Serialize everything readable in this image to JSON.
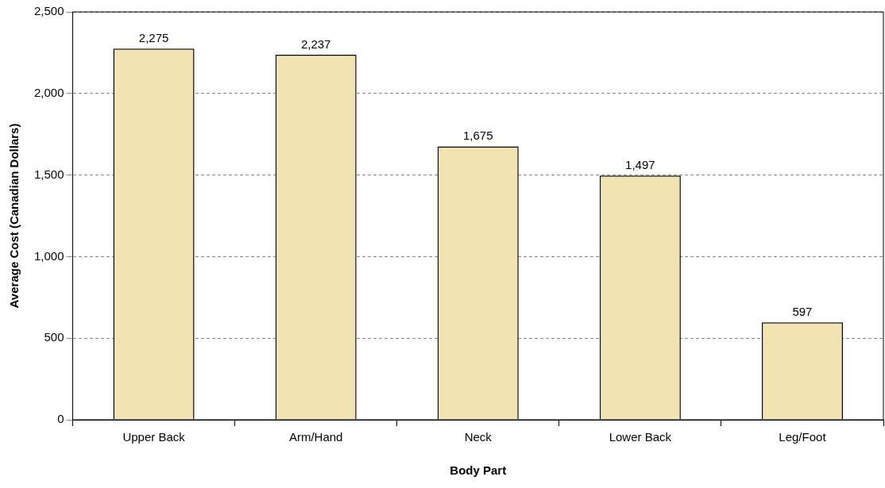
{
  "chart_data": {
    "type": "bar",
    "xlabel": "Body Part",
    "ylabel": "Average Cost (Canadian Dollars)",
    "categories": [
      "Upper Back",
      "Arm/Hand",
      "Neck",
      "Lower Back",
      "Leg/Foot"
    ],
    "values": [
      2275,
      2237,
      1675,
      1497,
      597
    ],
    "color": "#f2e4b0",
    "ylim": [
      0,
      2500
    ],
    "yticks": [
      0,
      {
        "value": 500,
        "label": "500"
      },
      {
        "value": 1000,
        "label": "1,000"
      },
      {
        "value": 1500,
        "label": "1,500"
      },
      {
        "value": 2000,
        "label": "2,000"
      },
      {
        "value": 2500,
        "label": "2,500"
      }
    ],
    "value_labels": [
      "2,275",
      "2,237",
      "1,675",
      "1,497",
      "597"
    ],
    "grid": "y",
    "legend": false
  }
}
